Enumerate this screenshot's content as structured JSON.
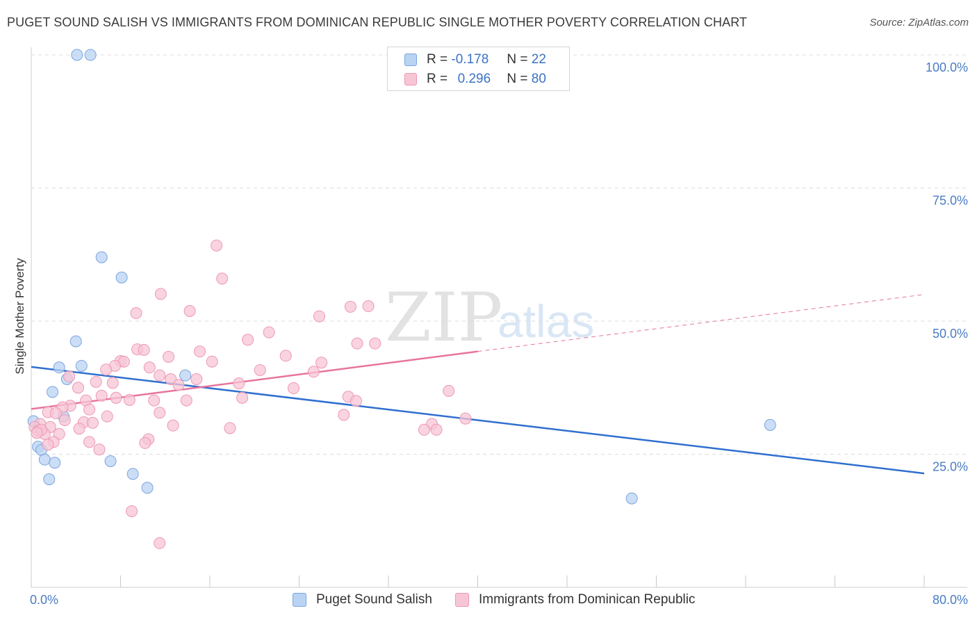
{
  "title": "PUGET SOUND SALISH VS IMMIGRANTS FROM DOMINICAN REPUBLIC SINGLE MOTHER POVERTY CORRELATION CHART",
  "source": "Source: ZipAtlas.com",
  "watermark": {
    "zip": "ZIP",
    "atlas": "atlas"
  },
  "legend": {
    "r_label": "R =",
    "n_label": "N =",
    "rows": [
      {
        "r": "-0.178",
        "n": "22",
        "color": "#b9d3f3",
        "border": "#7ba4df"
      },
      {
        "r": "0.296",
        "n": "80",
        "color": "#f7c6d5",
        "border": "#ee97b3"
      }
    ]
  },
  "chart_data": {
    "type": "scatter",
    "title": "PUGET SOUND SALISH VS IMMIGRANTS FROM DOMINICAN REPUBLIC SINGLE MOTHER POVERTY CORRELATION CHART",
    "ylabel": "Single Mother Poverty",
    "xlabel": "",
    "xlim": [
      0,
      80
    ],
    "ylim": [
      0,
      100
    ],
    "x_tick_labels": [
      "0.0%",
      "80.0%"
    ],
    "y_ticks": [
      25,
      50,
      75,
      100
    ],
    "y_tick_labels": [
      "25.0%",
      "50.0%",
      "75.0%",
      "100.0%"
    ],
    "grid": true,
    "legend_position": "top-center",
    "series": [
      {
        "name": "Puget Sound Salish",
        "color": "#7ba4df",
        "fill": "#b9d3f3",
        "trend_color": "#2f6fcf",
        "trend": {
          "x0": 0,
          "y0": 41.4,
          "x1": 80,
          "y1": 21.4
        },
        "points": [
          [
            4.1,
            100
          ],
          [
            5.3,
            100
          ],
          [
            6.3,
            62
          ],
          [
            8.1,
            58.2
          ],
          [
            4.0,
            46.2
          ],
          [
            2.5,
            41.3
          ],
          [
            4.5,
            41.6
          ],
          [
            3.2,
            39.1
          ],
          [
            13.8,
            39.8
          ],
          [
            1.9,
            36.7
          ],
          [
            2.9,
            32.1
          ],
          [
            0.2,
            31.2
          ],
          [
            0.6,
            26.4
          ],
          [
            0.9,
            25.8
          ],
          [
            1.2,
            24.0
          ],
          [
            2.1,
            23.4
          ],
          [
            7.1,
            23.7
          ],
          [
            9.1,
            21.3
          ],
          [
            1.6,
            20.3
          ],
          [
            10.4,
            18.7
          ],
          [
            66.2,
            30.5
          ],
          [
            53.8,
            16.7
          ]
        ]
      },
      {
        "name": "Immigrants from Dominican Republic",
        "color": "#ee97b3",
        "fill": "#f7c6d5",
        "trend_color": "#e8739c",
        "trend": {
          "x0": 0,
          "y0": 33.5,
          "x1": 40,
          "y1": 44.3
        },
        "trend_dashed": {
          "x0": 40,
          "y0": 44.3,
          "x1": 80,
          "y1": 55
        },
        "points": [
          [
            16.6,
            64.2
          ],
          [
            17.1,
            58
          ],
          [
            11.6,
            55.1
          ],
          [
            9.4,
            51.5
          ],
          [
            14.2,
            51.9
          ],
          [
            28.6,
            52.7
          ],
          [
            30.2,
            52.8
          ],
          [
            25.8,
            50.9
          ],
          [
            21.3,
            47.9
          ],
          [
            19.4,
            46.5
          ],
          [
            29.2,
            45.8
          ],
          [
            30.8,
            45.8
          ],
          [
            9.5,
            44.7
          ],
          [
            10.1,
            44.6
          ],
          [
            15.1,
            44.3
          ],
          [
            22.8,
            43.5
          ],
          [
            12.3,
            43.3
          ],
          [
            8.0,
            42.5
          ],
          [
            8.3,
            42.4
          ],
          [
            16.2,
            42.4
          ],
          [
            26.0,
            42.2
          ],
          [
            7.5,
            41.6
          ],
          [
            10.6,
            41.3
          ],
          [
            6.7,
            40.9
          ],
          [
            20.5,
            40.8
          ],
          [
            25.3,
            40.5
          ],
          [
            3.4,
            39.6
          ],
          [
            11.5,
            39.8
          ],
          [
            12.5,
            39.1
          ],
          [
            14.8,
            39.1
          ],
          [
            7.3,
            38.4
          ],
          [
            5.8,
            38.6
          ],
          [
            13.2,
            38.0
          ],
          [
            18.6,
            38.3
          ],
          [
            4.2,
            37.5
          ],
          [
            23.5,
            37.4
          ],
          [
            37.4,
            36.9
          ],
          [
            6.3,
            36.0
          ],
          [
            7.6,
            35.6
          ],
          [
            18.9,
            35.6
          ],
          [
            28.4,
            35.8
          ],
          [
            29.1,
            35.0
          ],
          [
            4.9,
            35.1
          ],
          [
            8.8,
            35.2
          ],
          [
            11.0,
            35.1
          ],
          [
            13.9,
            35.1
          ],
          [
            3.5,
            34.1
          ],
          [
            2.8,
            33.8
          ],
          [
            1.5,
            32.9
          ],
          [
            5.2,
            33.4
          ],
          [
            2.2,
            32.7
          ],
          [
            6.8,
            32.1
          ],
          [
            11.5,
            32.8
          ],
          [
            28.0,
            32.4
          ],
          [
            38.9,
            31.7
          ],
          [
            3.0,
            31.4
          ],
          [
            4.7,
            31.0
          ],
          [
            5.5,
            30.9
          ],
          [
            0.8,
            30.7
          ],
          [
            1.7,
            30.1
          ],
          [
            12.7,
            30.4
          ],
          [
            35.9,
            30.7
          ],
          [
            0.3,
            30.1
          ],
          [
            0.6,
            29.4
          ],
          [
            1.2,
            28.8
          ],
          [
            0.9,
            29.6
          ],
          [
            2.5,
            28.8
          ],
          [
            17.8,
            29.9
          ],
          [
            35.2,
            29.6
          ],
          [
            36.3,
            29.6
          ],
          [
            10.5,
            27.8
          ],
          [
            10.2,
            27.1
          ],
          [
            2.0,
            27.3
          ],
          [
            5.2,
            27.3
          ],
          [
            6.1,
            25.9
          ],
          [
            1.5,
            26.8
          ],
          [
            9.0,
            14.3
          ],
          [
            11.5,
            8.3
          ],
          [
            0.5,
            29.0
          ],
          [
            4.3,
            29.8
          ]
        ]
      }
    ]
  },
  "bottom_legend": [
    {
      "label": "Puget Sound Salish"
    },
    {
      "label": "Immigrants from Dominican Republic"
    }
  ]
}
